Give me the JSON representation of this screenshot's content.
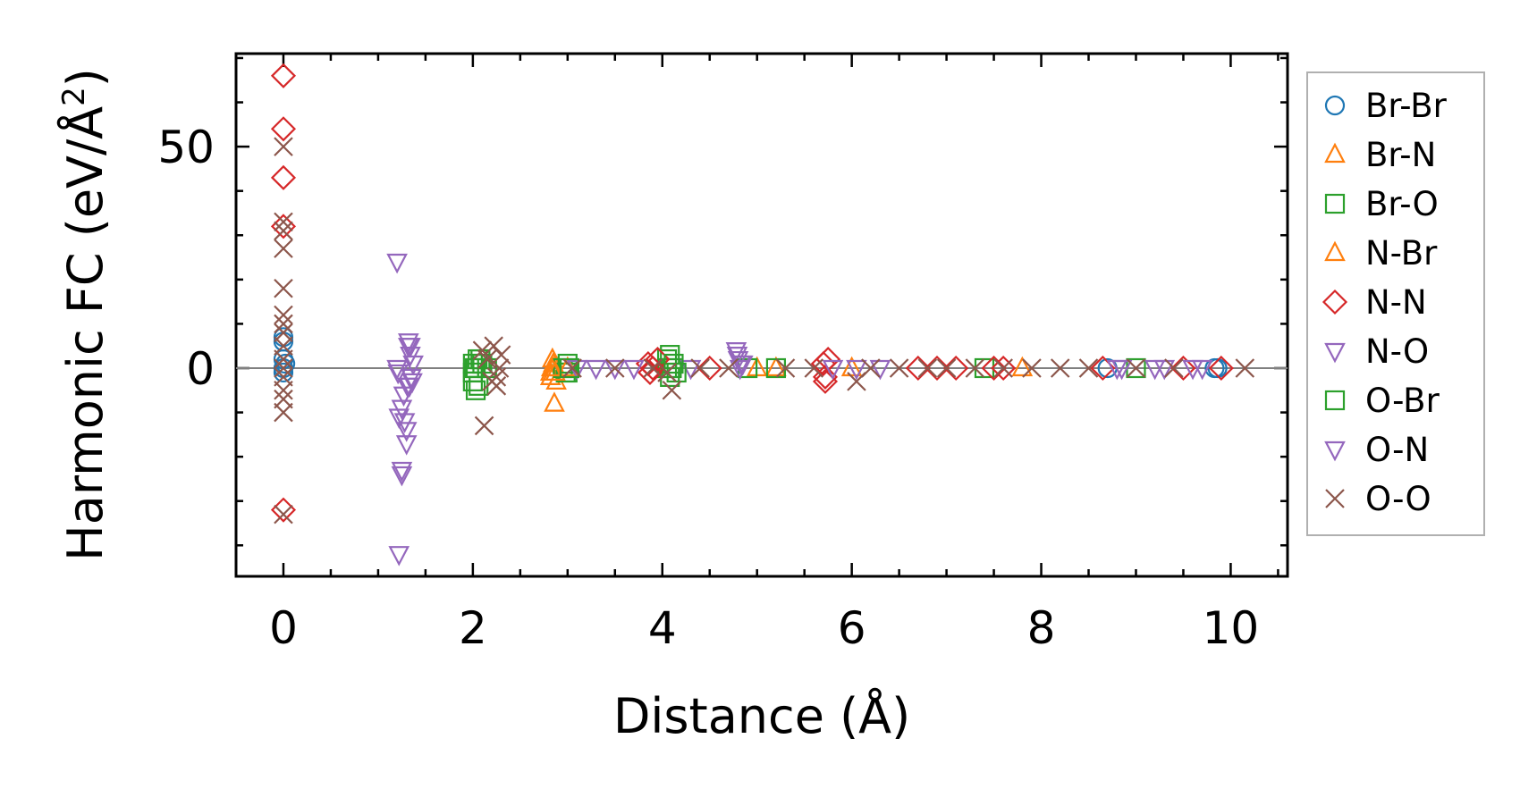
{
  "chart_data": {
    "type": "scatter",
    "title": "",
    "xlabel": "Distance (Å)",
    "ylabel_main": "Harmonic FC (eV/Å",
    "ylabel_sup": "2",
    "ylabel_close": ")",
    "xlim": [
      -0.5,
      10.6
    ],
    "ylim": [
      -47,
      71
    ],
    "xticks": [
      0,
      2,
      4,
      6,
      8,
      10
    ],
    "yticks": [
      0,
      50
    ],
    "x_minor_step": 0.5,
    "y_minor_step": 10,
    "zero_line": true,
    "grid": false,
    "legend_position": "right",
    "series": [
      {
        "name": "Br-Br",
        "marker": "circle",
        "color": "#1f77b4",
        "points": [
          [
            0,
            0
          ],
          [
            0,
            2
          ],
          [
            0,
            6
          ],
          [
            0,
            7
          ],
          [
            0,
            -1
          ],
          [
            0.02,
            1
          ],
          [
            9.83,
            0
          ],
          [
            9.86,
            0
          ],
          [
            8.7,
            0
          ]
        ]
      },
      {
        "name": "Br-N",
        "marker": "triangle-up",
        "color": "#ff7f0e",
        "points": [
          [
            2.82,
            -2
          ],
          [
            2.82,
            -1
          ],
          [
            2.84,
            2
          ],
          [
            2.85,
            0
          ],
          [
            2.85,
            1
          ],
          [
            2.86,
            -8
          ],
          [
            2.88,
            -3
          ],
          [
            5.0,
            0
          ],
          [
            5.2,
            0
          ],
          [
            7.8,
            0
          ]
        ]
      },
      {
        "name": "Br-O",
        "marker": "square",
        "color": "#2ca02c",
        "points": [
          [
            2.0,
            1
          ],
          [
            2.0,
            -1
          ],
          [
            2.02,
            0
          ],
          [
            2.03,
            -5
          ],
          [
            2.05,
            2
          ],
          [
            2.06,
            -4
          ],
          [
            2.1,
            1
          ],
          [
            2.15,
            0
          ],
          [
            2.95,
            0
          ],
          [
            2.98,
            -1
          ],
          [
            3.0,
            -1
          ],
          [
            3.0,
            1
          ],
          [
            4.05,
            0
          ],
          [
            4.05,
            2
          ],
          [
            4.08,
            3
          ],
          [
            4.08,
            -2
          ],
          [
            4.1,
            0
          ],
          [
            4.9,
            0
          ],
          [
            5.2,
            0
          ],
          [
            7.4,
            0
          ],
          [
            9.0,
            0
          ]
        ]
      },
      {
        "name": "N-Br",
        "marker": "triangle-up",
        "color": "#ff7f0e",
        "points": [
          [
            2.83,
            0
          ],
          [
            2.87,
            -1
          ],
          [
            3.0,
            0
          ],
          [
            6.0,
            0
          ]
        ]
      },
      {
        "name": "N-N",
        "marker": "diamond",
        "color": "#d62728",
        "points": [
          [
            0,
            66
          ],
          [
            0,
            54
          ],
          [
            0,
            43
          ],
          [
            0,
            32
          ],
          [
            0,
            -32
          ],
          [
            3.85,
            1
          ],
          [
            3.87,
            -1
          ],
          [
            3.9,
            0
          ],
          [
            3.95,
            2
          ],
          [
            4.5,
            0
          ],
          [
            5.7,
            1
          ],
          [
            5.72,
            -3
          ],
          [
            5.72,
            -2
          ],
          [
            5.75,
            2
          ],
          [
            6.7,
            0
          ],
          [
            6.9,
            0
          ],
          [
            7.1,
            0
          ],
          [
            7.5,
            0
          ],
          [
            7.6,
            0
          ],
          [
            8.65,
            0
          ],
          [
            9.5,
            0
          ],
          [
            9.9,
            0
          ]
        ]
      },
      {
        "name": "N-O",
        "marker": "triangle-down",
        "color": "#9467bd",
        "points": [
          [
            1.2,
            24
          ],
          [
            1.2,
            0
          ],
          [
            1.22,
            -11
          ],
          [
            1.25,
            -24
          ],
          [
            1.25,
            -23
          ],
          [
            1.22,
            -42
          ],
          [
            1.25,
            -9
          ],
          [
            1.28,
            -12
          ],
          [
            1.3,
            -14
          ],
          [
            1.3,
            -17
          ],
          [
            1.32,
            6
          ],
          [
            1.32,
            5
          ],
          [
            1.34,
            5
          ],
          [
            1.35,
            -2
          ],
          [
            1.33,
            -4
          ],
          [
            1.36,
            -3
          ],
          [
            1.37,
            1
          ],
          [
            3.1,
            0
          ],
          [
            3.3,
            0
          ],
          [
            3.5,
            0
          ],
          [
            3.7,
            0
          ],
          [
            4.3,
            0
          ],
          [
            4.78,
            4
          ],
          [
            4.8,
            2
          ],
          [
            4.82,
            0
          ],
          [
            4.85,
            1
          ],
          [
            5.8,
            0
          ],
          [
            6.3,
            0
          ],
          [
            8.85,
            0
          ],
          [
            9.3,
            0
          ],
          [
            9.6,
            0
          ],
          [
            9.7,
            0
          ]
        ]
      },
      {
        "name": "O-Br",
        "marker": "square",
        "color": "#2ca02c",
        "points": [
          [
            2.0,
            -3
          ],
          [
            2.03,
            0
          ],
          [
            2.08,
            2
          ],
          [
            3.02,
            0
          ],
          [
            4.12,
            1
          ],
          [
            4.15,
            -1
          ]
        ]
      },
      {
        "name": "O-N",
        "marker": "triangle-down",
        "color": "#9467bd",
        "points": [
          [
            1.21,
            -1
          ],
          [
            1.27,
            -6
          ],
          [
            1.31,
            -4
          ],
          [
            1.34,
            3
          ],
          [
            4.79,
            3
          ],
          [
            4.83,
            1
          ],
          [
            6.05,
            0
          ],
          [
            8.8,
            0
          ],
          [
            9.2,
            0
          ]
        ]
      },
      {
        "name": "O-O",
        "marker": "x",
        "color": "#8c564b",
        "points": [
          [
            0,
            50
          ],
          [
            0,
            33
          ],
          [
            0,
            31
          ],
          [
            0,
            27
          ],
          [
            0,
            18
          ],
          [
            0,
            12
          ],
          [
            0,
            10
          ],
          [
            0,
            8
          ],
          [
            0,
            5
          ],
          [
            0,
            2
          ],
          [
            0,
            0
          ],
          [
            0,
            -2
          ],
          [
            0,
            -5
          ],
          [
            0,
            -7
          ],
          [
            0,
            -10
          ],
          [
            0,
            -33
          ],
          [
            2.1,
            4
          ],
          [
            2.15,
            2
          ],
          [
            2.2,
            -3
          ],
          [
            2.22,
            5
          ],
          [
            2.25,
            -4
          ],
          [
            2.28,
            0
          ],
          [
            2.12,
            -13
          ],
          [
            2.3,
            3
          ],
          [
            2.25,
            -2
          ],
          [
            3.05,
            0
          ],
          [
            3.5,
            0
          ],
          [
            3.9,
            0
          ],
          [
            4.05,
            -1
          ],
          [
            4.1,
            -5
          ],
          [
            4.4,
            0
          ],
          [
            4.7,
            0
          ],
          [
            5.3,
            0
          ],
          [
            5.6,
            0
          ],
          [
            6.05,
            -3
          ],
          [
            6.2,
            0
          ],
          [
            6.5,
            0
          ],
          [
            6.8,
            0
          ],
          [
            7.0,
            0
          ],
          [
            7.3,
            0
          ],
          [
            7.6,
            0
          ],
          [
            7.9,
            0
          ],
          [
            8.2,
            0
          ],
          [
            8.5,
            0
          ],
          [
            9.0,
            0
          ],
          [
            9.4,
            0
          ],
          [
            10.15,
            0
          ]
        ]
      }
    ]
  }
}
